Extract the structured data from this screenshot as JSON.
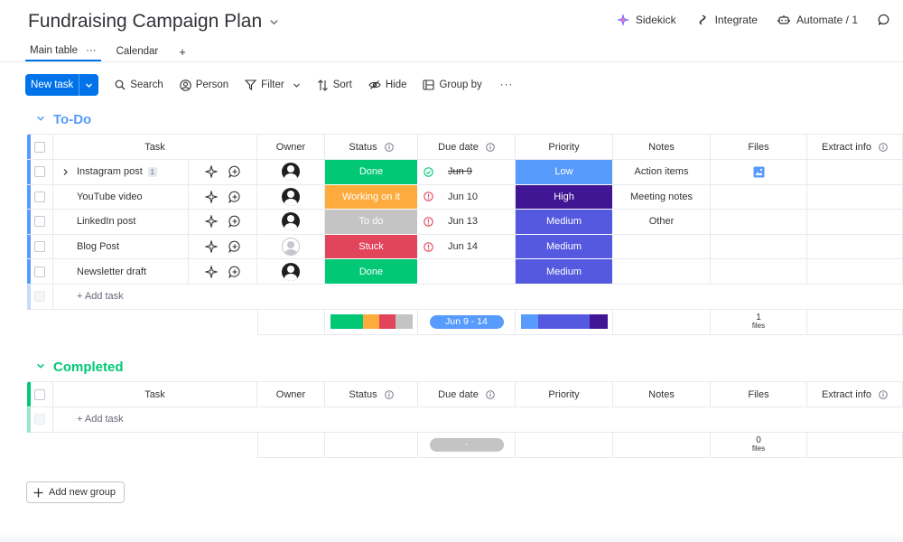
{
  "board": {
    "title": "Fundraising Campaign Plan"
  },
  "top_actions": [
    {
      "label": "Sidekick",
      "icon": "sparkle-icon"
    },
    {
      "label": "Integrate",
      "icon": "integrate-icon"
    },
    {
      "label": "Automate / 1",
      "icon": "robot-icon"
    }
  ],
  "tabs": {
    "main": "Main table",
    "calendar": "Calendar",
    "add": "+",
    "more": "···"
  },
  "toolbar": {
    "new_task": "New task",
    "search": "Search",
    "person": "Person",
    "filter": "Filter",
    "sort": "Sort",
    "hide": "Hide",
    "group_by": "Group by",
    "more": "···"
  },
  "columns": {
    "task": "Task",
    "owner": "Owner",
    "status": "Status",
    "due_date": "Due date",
    "priority": "Priority",
    "notes": "Notes",
    "files": "Files",
    "extract_info": "Extract info"
  },
  "colors": {
    "todo": "#579bfc",
    "completed": "#00c875",
    "done": "#00c875",
    "working": "#fdab3d",
    "todo_status": "#c4c4c4",
    "stuck": "#e2445c",
    "low": "#579bfc",
    "high": "#401694",
    "medium": "#5559df"
  },
  "groups": {
    "todo": {
      "title": "To-Do",
      "add_task": "+ Add task",
      "rows": [
        {
          "task": "Instagram post",
          "subitems": "1",
          "owner": "filled",
          "status": "Done",
          "status_color": "#00c875",
          "alert": "done",
          "due": "Jun 9",
          "struck": true,
          "priority": "Low",
          "priority_color": "#579bfc",
          "notes": "Action items",
          "has_file": true
        },
        {
          "task": "YouTube video",
          "subitems": "",
          "owner": "filled",
          "status": "Working on it",
          "status_color": "#fdab3d",
          "alert": "warn",
          "due": "Jun 10",
          "struck": false,
          "priority": "High",
          "priority_color": "#401694",
          "notes": "Meeting notes",
          "has_file": false
        },
        {
          "task": "LinkedIn post",
          "subitems": "",
          "owner": "filled",
          "status": "To do",
          "status_color": "#c4c4c4",
          "alert": "warn",
          "due": "Jun 13",
          "struck": false,
          "priority": "Medium",
          "priority_color": "#5559df",
          "notes": "Other",
          "has_file": false
        },
        {
          "task": "Blog Post",
          "subitems": "",
          "owner": "empty",
          "status": "Stuck",
          "status_color": "#e2445c",
          "alert": "warn",
          "due": "Jun 14",
          "struck": false,
          "priority": "Medium",
          "priority_color": "#5559df",
          "notes": "",
          "has_file": false
        },
        {
          "task": "Newsletter draft",
          "subitems": "",
          "owner": "filled",
          "status": "Done",
          "status_color": "#00c875",
          "alert": "",
          "due": "",
          "struck": false,
          "priority": "Medium",
          "priority_color": "#5559df",
          "notes": "",
          "has_file": false
        }
      ],
      "summary": {
        "status_segments": [
          {
            "color": "#00c875",
            "share": 0.4
          },
          {
            "color": "#fdab3d",
            "share": 0.2
          },
          {
            "color": "#e2445c",
            "share": 0.2
          },
          {
            "color": "#c4c4c4",
            "share": 0.2
          }
        ],
        "due_range": "Jun 9 - 14",
        "priority_segments": [
          {
            "color": "#579bfc",
            "share": 0.2
          },
          {
            "color": "#5559df",
            "share": 0.6
          },
          {
            "color": "#401694",
            "share": 0.2
          }
        ],
        "files_count": "1",
        "files_label": "files"
      }
    },
    "completed": {
      "title": "Completed",
      "add_task": "+ Add task",
      "summary": {
        "due_range": "-",
        "files_count": "0",
        "files_label": "files"
      }
    }
  },
  "add_group": "Add new group"
}
